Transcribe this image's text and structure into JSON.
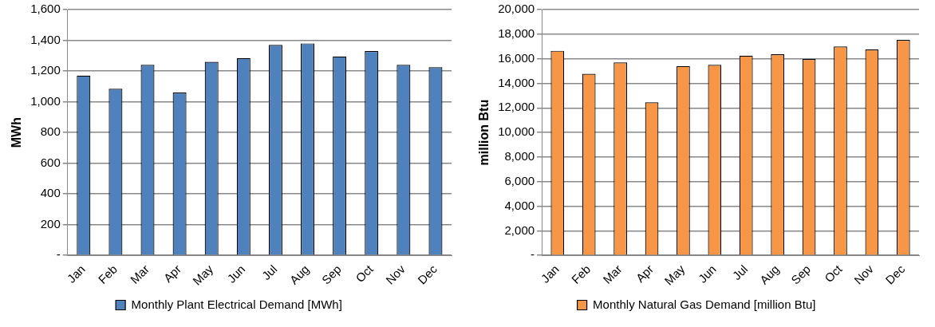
{
  "chart_data": [
    {
      "type": "bar",
      "ylabel": "MWh",
      "categories": [
        "Jan",
        "Feb",
        "Mar",
        "Apr",
        "May",
        "Jun",
        "Jul",
        "Aug",
        "Sep",
        "Oct",
        "Nov",
        "Dec"
      ],
      "series": [
        {
          "name": "Monthly Plant Electrical Demand [MWh]",
          "color": "#4f81bd",
          "values": [
            1170,
            1085,
            1240,
            1060,
            1260,
            1285,
            1370,
            1380,
            1295,
            1330,
            1240,
            1225
          ]
        }
      ],
      "ylim": [
        0,
        1600
      ],
      "yticks": [
        {
          "value": 0,
          "label": "-"
        },
        {
          "value": 200,
          "label": "200"
        },
        {
          "value": 400,
          "label": "400"
        },
        {
          "value": 600,
          "label": "600"
        },
        {
          "value": 800,
          "label": "800"
        },
        {
          "value": 1000,
          "label": "1,000"
        },
        {
          "value": 1200,
          "label": "1,200"
        },
        {
          "value": 1400,
          "label": "1,400"
        },
        {
          "value": 1600,
          "label": "1,600"
        }
      ],
      "grid": "y",
      "legend": "bottom"
    },
    {
      "type": "bar",
      "ylabel": "million Btu",
      "categories": [
        "Jan",
        "Feb",
        "Mar",
        "Apr",
        "May",
        "Jun",
        "Jul",
        "Aug",
        "Sep",
        "Oct",
        "Nov",
        "Dec"
      ],
      "series": [
        {
          "name": "Monthly Natural Gas Demand [million Btu]",
          "color": "#f79646",
          "values": [
            16650,
            14770,
            15700,
            12450,
            15400,
            15500,
            16250,
            16370,
            15980,
            17000,
            16750,
            17530
          ]
        }
      ],
      "ylim": [
        0,
        20000
      ],
      "yticks": [
        {
          "value": 0,
          "label": "-"
        },
        {
          "value": 2000,
          "label": "2,000"
        },
        {
          "value": 4000,
          "label": "4,000"
        },
        {
          "value": 6000,
          "label": "6,000"
        },
        {
          "value": 8000,
          "label": "8,000"
        },
        {
          "value": 10000,
          "label": "10,000"
        },
        {
          "value": 12000,
          "label": "12,000"
        },
        {
          "value": 14000,
          "label": "14,000"
        },
        {
          "value": 16000,
          "label": "16,000"
        },
        {
          "value": 18000,
          "label": "18,000"
        },
        {
          "value": 20000,
          "label": "20,000"
        }
      ],
      "grid": "y",
      "legend": "bottom"
    }
  ]
}
